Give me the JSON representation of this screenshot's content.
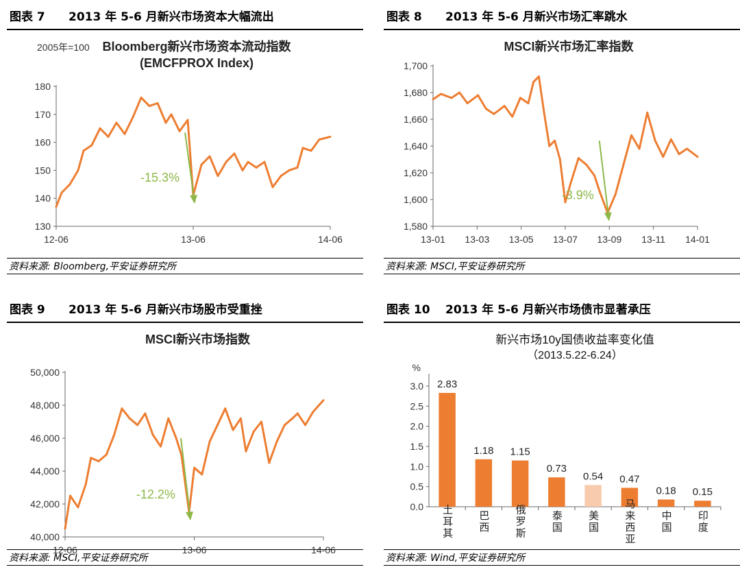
{
  "colors": {
    "line": "#ED7D31",
    "bar": "#ED7D31",
    "bar_light": "#F8CBAD",
    "arrow": "#8DB849",
    "annot": "#8DB849"
  },
  "panels": [
    {
      "num": "图表 7",
      "title": "2013 年 5-6 月新兴市场资本大幅流出",
      "source": "资料来源: Bloomberg,平安证券研究所",
      "chart_data": {
        "type": "line",
        "title": "Bloomberg新兴市场资本流动指数",
        "subtitle": "(EMCFPROX Index)",
        "ylabel": "2005年=100",
        "ylim": [
          130,
          180
        ],
        "yticks": [
          "130",
          "140",
          "150",
          "160",
          "170",
          "180"
        ],
        "xticks": [
          "12-06",
          "13-06",
          "14-06"
        ],
        "annotation": "-15.3%",
        "series": [
          {
            "name": "EMCFPROX",
            "x": [
              0,
              0.02,
              0.05,
              0.08,
              0.1,
              0.13,
              0.16,
              0.19,
              0.22,
              0.25,
              0.28,
              0.31,
              0.34,
              0.37,
              0.4,
              0.42,
              0.45,
              0.48,
              0.5,
              0.53,
              0.56,
              0.59,
              0.62,
              0.65,
              0.68,
              0.7,
              0.73,
              0.76,
              0.79,
              0.82,
              0.85,
              0.88,
              0.9,
              0.93,
              0.96,
              1.0
            ],
            "values": [
              137,
              142,
              145,
              150,
              157,
              159,
              165,
              162,
              167,
              163,
              169,
              176,
              173,
              174,
              167,
              170,
              164,
              168,
              141,
              152,
              155,
              148,
              153,
              156,
              150,
              153,
              151,
              153,
              144,
              148,
              150,
              151,
              158,
              157,
              161,
              162
            ]
          }
        ]
      }
    },
    {
      "num": "图表 8",
      "title": "2013 年 5-6 月新兴市场汇率跳水",
      "source": "资料来源: MSCI,平安证券研究所",
      "chart_data": {
        "type": "line",
        "title": "MSCI新兴市场汇率指数",
        "ylim": [
          1580,
          1700
        ],
        "yticks": [
          "1,580",
          "1,600",
          "1,620",
          "1,640",
          "1,660",
          "1,680",
          "1,700"
        ],
        "xticks": [
          "13-01",
          "13-03",
          "13-05",
          "13-07",
          "13-09",
          "13-11",
          "14-01"
        ],
        "annotation": "-3.9%",
        "series": [
          {
            "name": "MSCI EM Currency",
            "x": [
              0,
              0.03,
              0.07,
              0.1,
              0.13,
              0.17,
              0.2,
              0.23,
              0.27,
              0.3,
              0.33,
              0.36,
              0.38,
              0.4,
              0.42,
              0.44,
              0.46,
              0.48,
              0.5,
              0.52,
              0.55,
              0.58,
              0.61,
              0.63,
              0.66,
              0.69,
              0.72,
              0.75,
              0.78,
              0.81,
              0.84,
              0.87,
              0.9,
              0.93,
              0.96,
              1.0
            ],
            "values": [
              1675,
              1679,
              1676,
              1680,
              1672,
              1678,
              1668,
              1664,
              1670,
              1662,
              1676,
              1672,
              1688,
              1692,
              1665,
              1640,
              1644,
              1630,
              1598,
              1612,
              1631,
              1626,
              1618,
              1606,
              1590,
              1604,
              1626,
              1648,
              1638,
              1665,
              1644,
              1632,
              1645,
              1634,
              1638,
              1632
            ]
          }
        ]
      }
    },
    {
      "num": "图表 9",
      "title": "2013 年 5-6 月新兴市场股市受重挫",
      "source": "资料来源: MSCI,平安证券研究所",
      "chart_data": {
        "type": "line",
        "title": "MSCI新兴市场指数",
        "ylim": [
          40000,
          50000
        ],
        "yticks": [
          "40,000",
          "42,000",
          "44,000",
          "46,000",
          "48,000",
          "50,000"
        ],
        "xticks": [
          "12-06",
          "13-06",
          "14-06"
        ],
        "annotation": "-12.2%",
        "series": [
          {
            "name": "MSCI EM",
            "x": [
              0,
              0.02,
              0.05,
              0.08,
              0.1,
              0.13,
              0.16,
              0.19,
              0.22,
              0.25,
              0.28,
              0.31,
              0.34,
              0.37,
              0.4,
              0.43,
              0.45,
              0.48,
              0.5,
              0.53,
              0.56,
              0.59,
              0.62,
              0.65,
              0.68,
              0.7,
              0.73,
              0.76,
              0.79,
              0.82,
              0.85,
              0.88,
              0.9,
              0.93,
              0.96,
              1.0
            ],
            "values": [
              40500,
              42500,
              41800,
              43200,
              44800,
              44600,
              45000,
              46200,
              47800,
              47200,
              46800,
              47500,
              46200,
              45500,
              47200,
              46000,
              45000,
              41500,
              44200,
              43800,
              45800,
              46800,
              47800,
              46500,
              47200,
              45200,
              46400,
              47000,
              44500,
              45800,
              46800,
              47200,
              47500,
              46800,
              47600,
              48300
            ]
          }
        ]
      }
    },
    {
      "num": "图表 10",
      "title": "2013 年 5-6 月新兴市场债市显著承压",
      "source": "资料来源: Wind,平安证券研究所",
      "chart_data": {
        "type": "bar",
        "title": "新兴市场10y国债收益率变化值",
        "subtitle": "（2013.5.22-6.24）",
        "ylabel": "%",
        "ylim": [
          0,
          3.0
        ],
        "yticks": [
          "0.0",
          "0.5",
          "1.0",
          "1.5",
          "2.0",
          "2.5",
          "3.0"
        ],
        "categories": [
          "土耳其",
          "巴西",
          "俄罗斯",
          "泰国",
          "美国",
          "马来西亚",
          "中国",
          "印度"
        ],
        "values": [
          2.83,
          1.18,
          1.15,
          0.73,
          0.54,
          0.47,
          0.18,
          0.15
        ],
        "value_labels": [
          "2.83",
          "1.18",
          "1.15",
          "0.73",
          "0.54",
          "0.47",
          "0.18",
          "0.15"
        ],
        "highlight_index": 4
      }
    }
  ]
}
